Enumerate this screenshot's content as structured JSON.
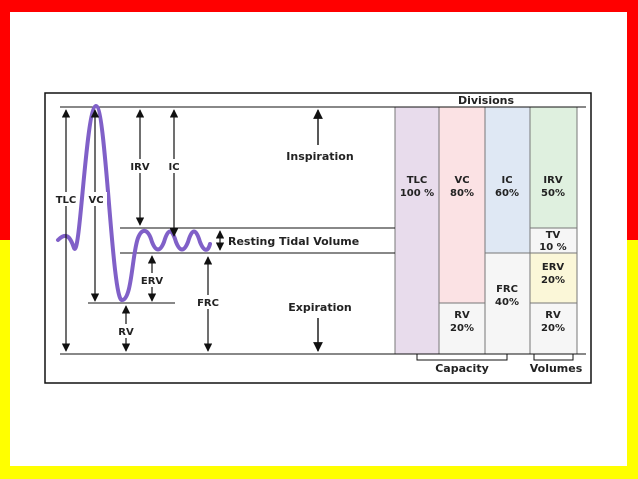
{
  "colors": {
    "top_band": "#ff0000",
    "bottom_band": "#ffff00",
    "curve": "#8060c8",
    "column_tlc": "#e8dcec",
    "column_vc": "#fbe2e4",
    "column_ic": "#dfe8f4",
    "column_irv": "#dff0df",
    "column_erv": "#fbf7d8",
    "column_light": "#f4f4f4"
  },
  "header": {
    "divisions": "Divisions"
  },
  "labels": {
    "tlc": "TLC",
    "vc": "VC",
    "irv": "IRV",
    "ic": "IC",
    "erv": "ERV",
    "rv": "RV",
    "frc": "FRC",
    "inspiration": "Inspiration",
    "resting_tidal_volume": "Resting Tidal Volume",
    "expiration": "Expiration"
  },
  "columns": {
    "tlc": {
      "name": "TLC",
      "pct": "100 %"
    },
    "vc": {
      "name": "VC",
      "pct": "80%"
    },
    "vc_rv": {
      "name": "RV",
      "pct": "20%"
    },
    "ic": {
      "name": "IC",
      "pct": "60%"
    },
    "frc": {
      "name": "FRC",
      "pct": "40%"
    },
    "irv": {
      "name": "IRV",
      "pct": "50%"
    },
    "tv": {
      "name": "TV",
      "pct": "10 %"
    },
    "erv": {
      "name": "ERV",
      "pct": "20%"
    },
    "rv": {
      "name": "RV",
      "pct": "20%"
    }
  },
  "footer": {
    "capacity": "Capacity",
    "volumes": "Volumes"
  }
}
